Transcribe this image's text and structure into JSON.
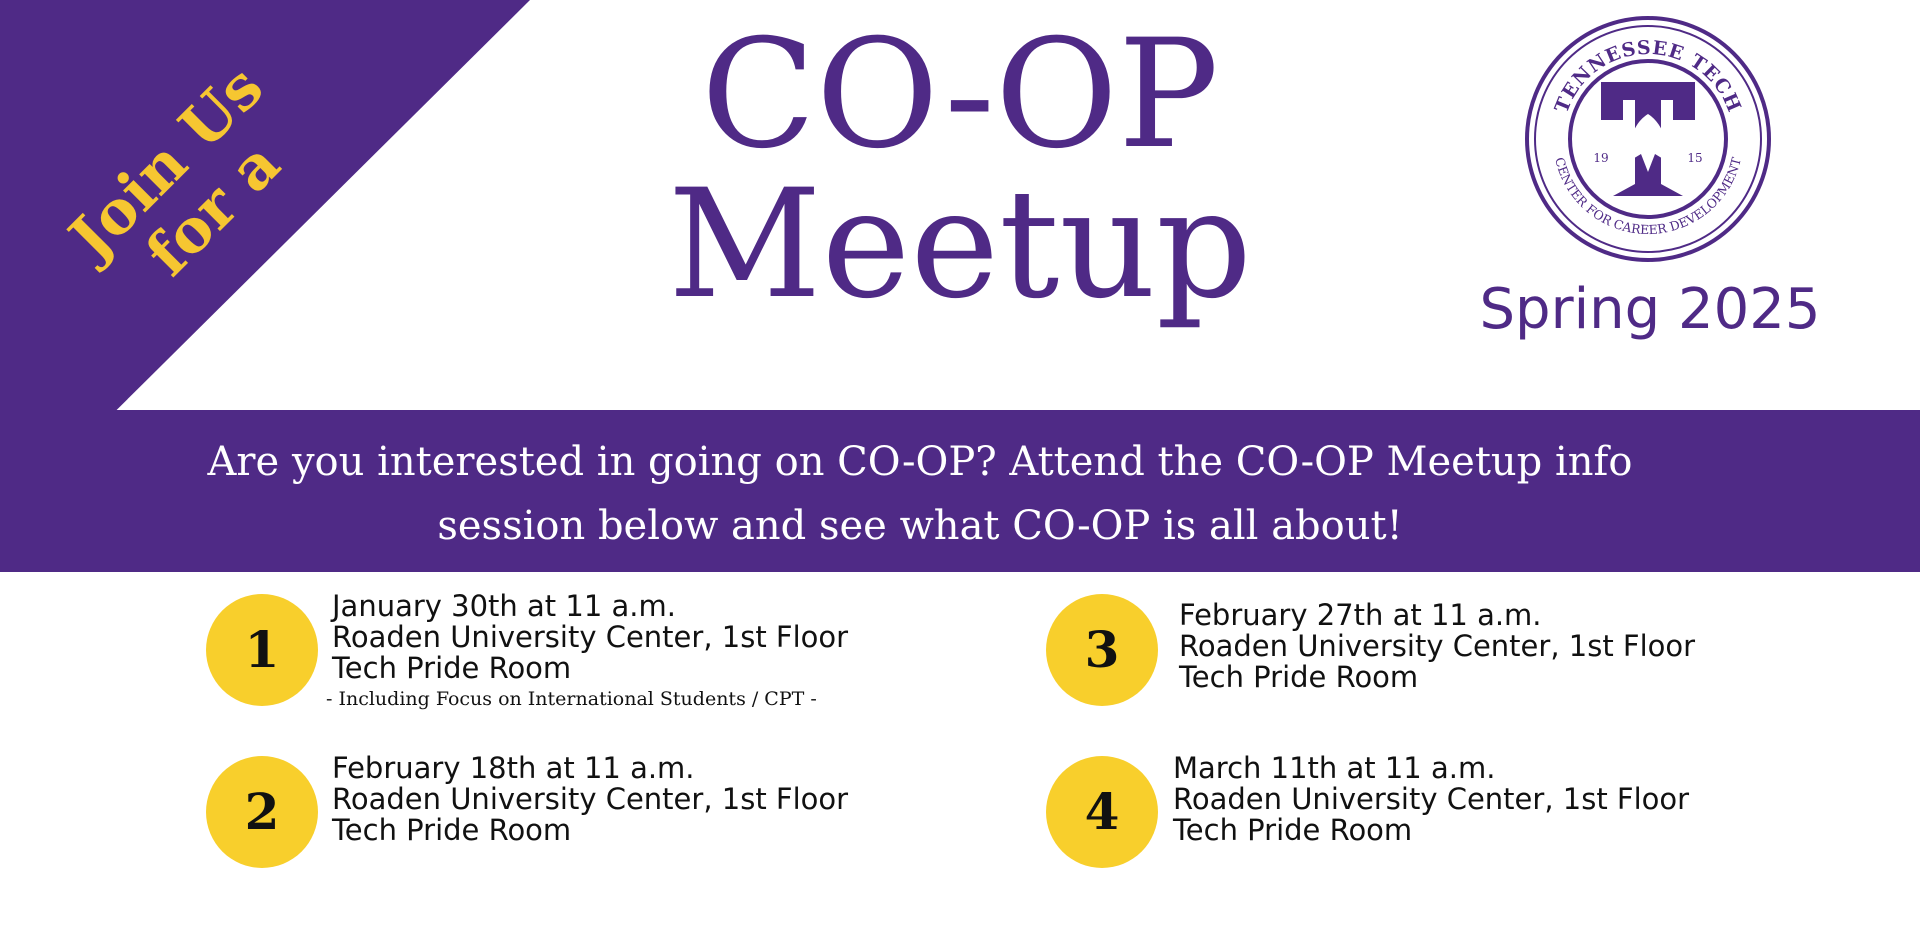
{
  "header": {
    "tagline_lines": [
      "Join Us",
      "for a"
    ],
    "title_lines": [
      "CO-OP",
      "Meetup"
    ],
    "season": "Spring 2025"
  },
  "seal": {
    "top_text": "TENNESSEE TECH",
    "bottom_text": "CENTER FOR CAREER DEVELOPMENT",
    "year_left": "19",
    "year_right": "15"
  },
  "banner": {
    "lines": [
      "Are you interested in going on CO-OP?  Attend the CO-OP Meetup info",
      "session below and see what CO-OP is all about!"
    ]
  },
  "sessions": [
    {
      "number": "1",
      "date": "January 30th at 11 a.m.",
      "location": "Roaden University Center, 1st Floor",
      "room": "Tech Pride Room",
      "note": "- Including Focus on International Students / CPT -"
    },
    {
      "number": "2",
      "date": "February 18th at 11 a.m.",
      "location": "Roaden University Center, 1st Floor",
      "room": "Tech Pride Room"
    },
    {
      "number": "3",
      "date": "February 27th at 11 a.m.",
      "location": "Roaden University Center, 1st Floor",
      "room": "Tech Pride Room"
    },
    {
      "number": "4",
      "date": "March 11th at 11 a.m.",
      "location": "Roaden University Center, 1st Floor",
      "room": "Tech Pride Room"
    }
  ],
  "colors": {
    "purple": "#4f2a86",
    "gold": "#f8cf2c",
    "gold_text": "#f6c631"
  }
}
